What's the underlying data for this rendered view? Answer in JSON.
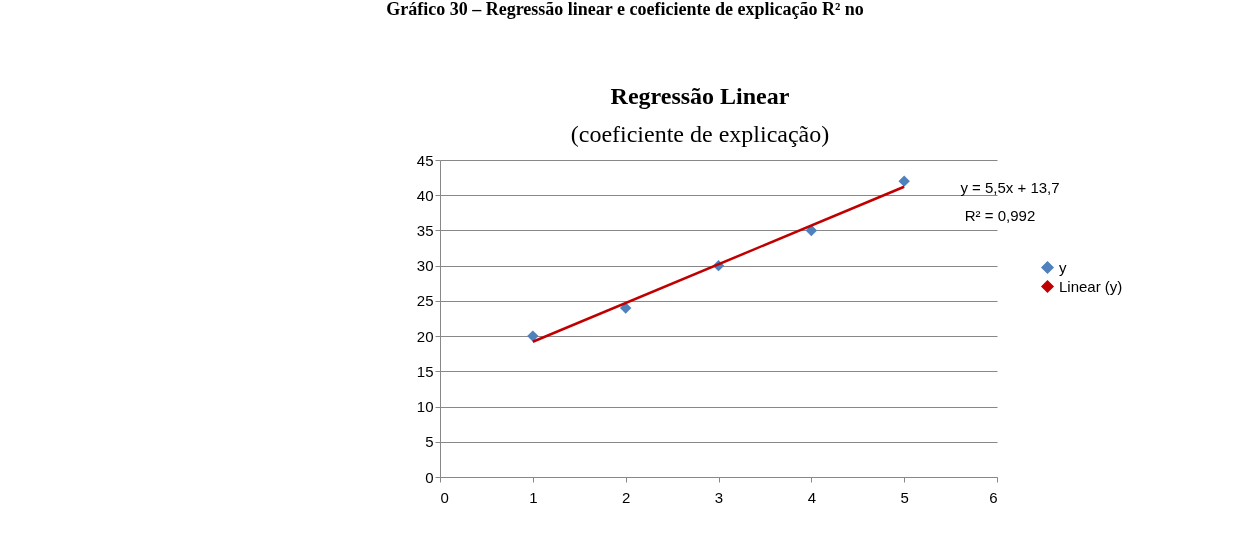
{
  "chart_data": {
    "type": "scatter",
    "title": "Regressão Linear",
    "subtitle": "(coeficiente de explicação)",
    "series": [
      {
        "name": "y",
        "color": "#4f81bd",
        "marker": "diamond",
        "x": [
          1,
          2,
          3,
          4,
          5
        ],
        "values": [
          20,
          24,
          30,
          35,
          42
        ]
      },
      {
        "name": "Linear (y)",
        "type": "line",
        "color": "#c00000",
        "x": [
          1,
          5
        ],
        "values": [
          19.2,
          41.2
        ]
      }
    ],
    "annotations": [
      "Gráfico 30 – Regressão linear e coeficiente de explicação R² no",
      "y = 5,5x + 13,7",
      "R² = 0,992"
    ],
    "xlim": [
      0,
      6
    ],
    "xticks": [
      0,
      1,
      2,
      3,
      4,
      5,
      6
    ],
    "ylim": [
      0,
      45
    ],
    "yticks": [
      0,
      5,
      10,
      15,
      20,
      25,
      30,
      35,
      40,
      45
    ],
    "grid": "y",
    "legend": "right"
  }
}
